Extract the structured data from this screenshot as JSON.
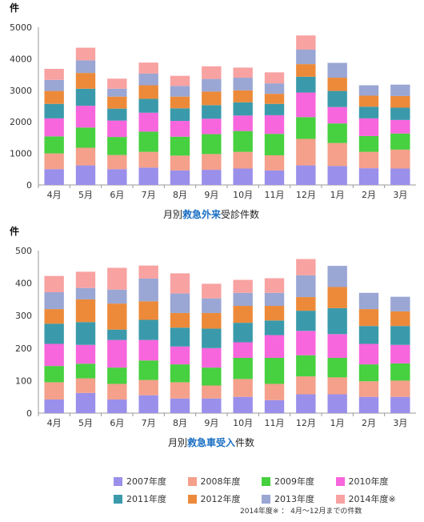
{
  "colors": {
    "2007": "#9a8fea",
    "2008": "#f4a08a",
    "2009": "#47d03f",
    "2010": "#f766dc",
    "2011": "#3a9aab",
    "2012": "#ec8a3a",
    "2013": "#9aa6d4",
    "2014": "#f8a2a2"
  },
  "chart_data": [
    {
      "type": "bar",
      "stacked": true,
      "title": "",
      "unit_label": "件",
      "xlabel_parts": [
        "月別",
        "救急外来",
        "受診件数"
      ],
      "ylabel": "",
      "ylim": [
        0,
        5000
      ],
      "yticks": [
        0,
        1000,
        2000,
        3000,
        4000,
        5000
      ],
      "grid": false,
      "categories": [
        "4月",
        "5月",
        "6月",
        "7月",
        "8月",
        "9月",
        "10月",
        "11月",
        "12月",
        "1月",
        "2月",
        "3月"
      ],
      "series": [
        {
          "name": "2007年度",
          "values": [
            500,
            620,
            500,
            550,
            460,
            480,
            520,
            460,
            620,
            600,
            530,
            520
          ]
        },
        {
          "name": "2008年度",
          "values": [
            500,
            560,
            450,
            500,
            470,
            500,
            530,
            480,
            840,
            730,
            520,
            600
          ]
        },
        {
          "name": "2009年度",
          "values": [
            540,
            640,
            570,
            640,
            600,
            630,
            660,
            680,
            690,
            620,
            500,
            510
          ]
        },
        {
          "name": "2010年度",
          "values": [
            570,
            690,
            520,
            600,
            500,
            490,
            490,
            590,
            780,
            520,
            560,
            430
          ]
        },
        {
          "name": "2011年度",
          "values": [
            460,
            540,
            380,
            440,
            400,
            430,
            420,
            360,
            500,
            510,
            370,
            390
          ]
        },
        {
          "name": "2012年度",
          "values": [
            410,
            500,
            380,
            430,
            370,
            430,
            380,
            320,
            400,
            420,
            350,
            370
          ]
        },
        {
          "name": "2013年度",
          "values": [
            350,
            400,
            250,
            370,
            340,
            400,
            400,
            330,
            460,
            470,
            330,
            360
          ]
        },
        {
          "name": "2014年度※",
          "values": [
            350,
            400,
            320,
            350,
            320,
            400,
            320,
            350,
            450,
            0,
            0,
            0
          ]
        }
      ]
    },
    {
      "type": "bar",
      "stacked": true,
      "title": "",
      "unit_label": "件",
      "xlabel_parts": [
        "月別",
        "救急車受入",
        "件数"
      ],
      "ylabel": "",
      "ylim": [
        0,
        500
      ],
      "yticks": [
        0,
        100,
        200,
        300,
        400,
        500
      ],
      "grid": false,
      "categories": [
        "4月",
        "5月",
        "6月",
        "7月",
        "8月",
        "9月",
        "10月",
        "11月",
        "12月",
        "1月",
        "2月",
        "3月"
      ],
      "series": [
        {
          "name": "2007年度",
          "values": [
            42,
            62,
            42,
            55,
            45,
            45,
            50,
            40,
            58,
            58,
            50,
            50
          ]
        },
        {
          "name": "2008年度",
          "values": [
            53,
            45,
            48,
            47,
            50,
            40,
            55,
            50,
            55,
            52,
            48,
            50
          ]
        },
        {
          "name": "2009年度",
          "values": [
            50,
            45,
            50,
            60,
            55,
            55,
            65,
            80,
            65,
            60,
            52,
            53
          ]
        },
        {
          "name": "2010年度",
          "values": [
            68,
            58,
            85,
            63,
            55,
            60,
            48,
            70,
            75,
            73,
            63,
            57
          ]
        },
        {
          "name": "2011年度",
          "values": [
            62,
            70,
            32,
            62,
            58,
            60,
            60,
            45,
            62,
            80,
            55,
            58
          ]
        },
        {
          "name": "2012年度",
          "values": [
            45,
            70,
            80,
            57,
            45,
            48,
            52,
            45,
            42,
            65,
            52,
            45
          ]
        },
        {
          "name": "2013年度",
          "values": [
            52,
            35,
            43,
            70,
            60,
            45,
            40,
            40,
            67,
            65,
            50,
            45
          ]
        },
        {
          "name": "2014年度※",
          "values": [
            50,
            50,
            67,
            40,
            62,
            45,
            40,
            45,
            50,
            0,
            0,
            0
          ]
        }
      ]
    }
  ],
  "legend": {
    "row1": [
      {
        "key": "2007",
        "label": "2007年度"
      },
      {
        "key": "2008",
        "label": "2008年度"
      },
      {
        "key": "2009",
        "label": "2009年度"
      },
      {
        "key": "2010",
        "label": "2010年度"
      }
    ],
    "row2": [
      {
        "key": "2011",
        "label": "2011年度"
      },
      {
        "key": "2012",
        "label": "2012年度"
      },
      {
        "key": "2013",
        "label": "2013年度"
      },
      {
        "key": "2014",
        "label": "2014年度※"
      }
    ]
  },
  "footnote": "2014年度※ ： 4月～12月までの件数"
}
